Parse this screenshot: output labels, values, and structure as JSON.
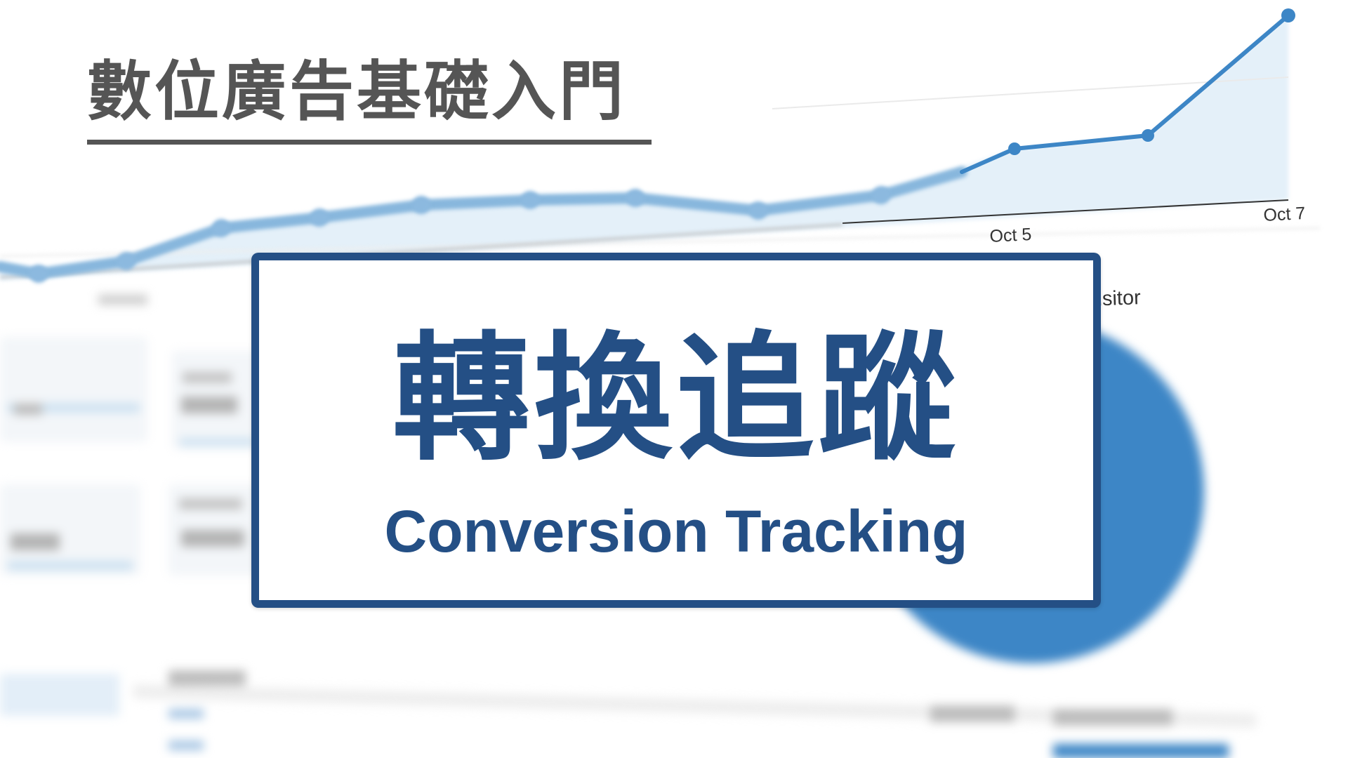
{
  "series_title": "數位廣告基礎入門",
  "card": {
    "title": "轉換追蹤",
    "subtitle": "Conversion Tracking"
  },
  "background_chart": {
    "date_labels": [
      "Oct 5",
      "Oct 7"
    ],
    "legend_fragment": "Visitor"
  },
  "colors": {
    "title_gray": "#555555",
    "brand_blue": "#244f85",
    "chart_line": "#3d86c6",
    "chart_fill": "#e4f0f9"
  }
}
